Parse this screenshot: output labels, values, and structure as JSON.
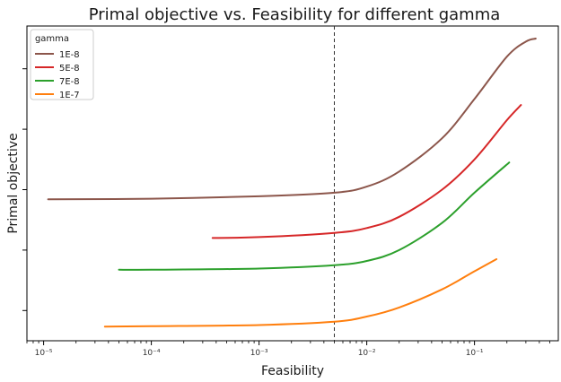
{
  "chart_data": {
    "type": "line",
    "title": "Primal objective vs. Feasibility for different gamma",
    "xlabel": "Feasibility",
    "ylabel": "Primal objective",
    "xscale": "log",
    "xlim": [
      7e-06,
      0.6
    ],
    "ylim": [
      0,
      1
    ],
    "x_tick_values": [
      1e-05,
      0.0001,
      0.001,
      0.01,
      0.1
    ],
    "x_tick_labels": [
      "10⁻⁵",
      "10⁻⁴",
      "10⁻³",
      "10⁻²",
      "10⁻¹"
    ],
    "y_tick_labels_shown": false,
    "legend": {
      "title": "gamma",
      "placement": "upper left"
    },
    "reference_line": {
      "x": 0.005,
      "style": "dashed",
      "color": "#333333"
    },
    "series": [
      {
        "name": "1E-8",
        "color": "#8c564b",
        "x": [
          1.1e-05,
          0.0001,
          0.001,
          0.005,
          0.01,
          0.02,
          0.05,
          0.1,
          0.2,
          0.3,
          0.37
        ],
        "y": [
          0.468,
          0.47,
          0.478,
          0.49,
          0.51,
          0.56,
          0.67,
          0.8,
          0.94,
          0.99,
          1.0
        ]
      },
      {
        "name": "5E-8",
        "color": "#d62728",
        "x": [
          0.00037,
          0.001,
          0.005,
          0.01,
          0.02,
          0.05,
          0.1,
          0.2,
          0.27
        ],
        "y": [
          0.34,
          0.343,
          0.357,
          0.373,
          0.41,
          0.5,
          0.6,
          0.73,
          0.78
        ]
      },
      {
        "name": "7E-8",
        "color": "#2ca02c",
        "x": [
          5e-05,
          0.0001,
          0.001,
          0.005,
          0.01,
          0.02,
          0.05,
          0.1,
          0.21
        ],
        "y": [
          0.235,
          0.235,
          0.239,
          0.25,
          0.264,
          0.3,
          0.39,
          0.49,
          0.59
        ]
      },
      {
        "name": "1E-7",
        "color": "#ff7f0e",
        "x": [
          3.7e-05,
          0.0001,
          0.001,
          0.005,
          0.01,
          0.02,
          0.05,
          0.1,
          0.16
        ],
        "y": [
          0.047,
          0.048,
          0.052,
          0.063,
          0.08,
          0.11,
          0.17,
          0.23,
          0.27
        ]
      }
    ]
  }
}
